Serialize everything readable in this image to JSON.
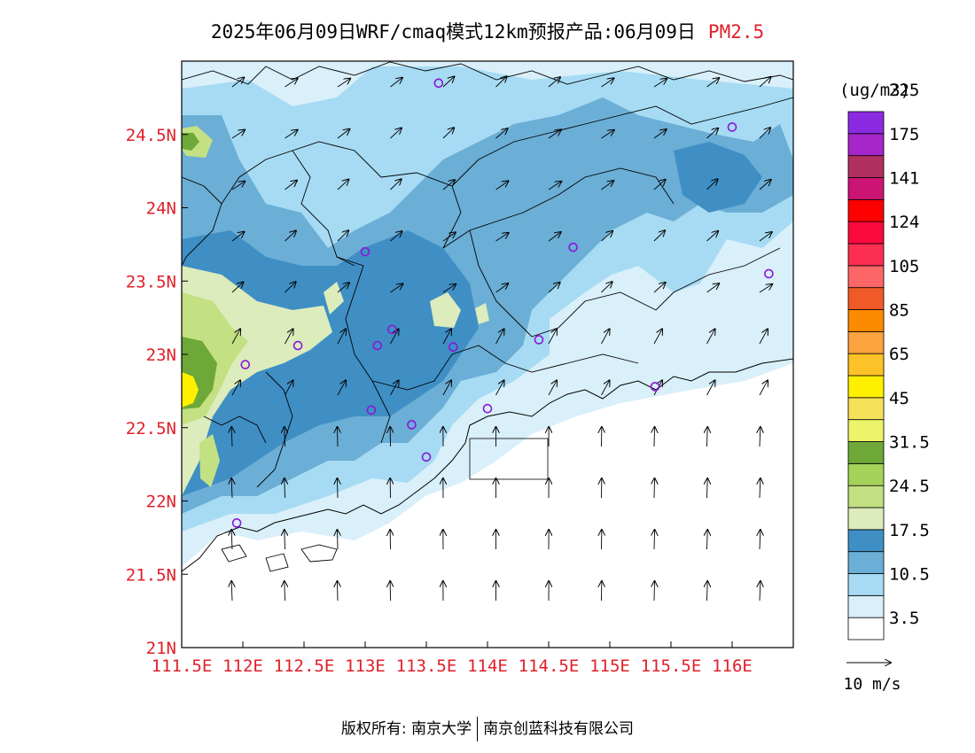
{
  "title": {
    "main": "2025年06月09日WRF/cmaq模式12km预报产品:06月09日",
    "species": "PM2.5"
  },
  "axes": {
    "lon_labels": [
      "111.5E",
      "112E",
      "112.5E",
      "113E",
      "113.5E",
      "114E",
      "114.5E",
      "115E",
      "115.5E",
      "116E"
    ],
    "lon_values": [
      111.5,
      112,
      112.5,
      113,
      113.5,
      114,
      114.5,
      115,
      115.5,
      116
    ],
    "lat_labels": [
      "21N",
      "21.5N",
      "22N",
      "22.5N",
      "23N",
      "23.5N",
      "24N",
      "24.5N"
    ],
    "lat_values": [
      21,
      21.5,
      22,
      22.5,
      23,
      23.5,
      24,
      24.5
    ],
    "lon_range": [
      111.5,
      116.5
    ],
    "lat_range": [
      21,
      25
    ]
  },
  "legend": {
    "unit": "(ug/m3)",
    "labels": [
      "3.5",
      "10.5",
      "17.5",
      "24.5",
      "31.5",
      "45",
      "65",
      "85",
      "105",
      "124",
      "141",
      "175",
      "225"
    ],
    "colors": [
      "#ffffff",
      "#d9eff9",
      "#a6dbf3",
      "#6baed6",
      "#3f8fc5",
      "#dcecbc",
      "#c3e082",
      "#a5d35a",
      "#6ea838",
      "#ecf46a",
      "#f6e15a",
      "#fff000",
      "#fdc227",
      "#fba33e",
      "#fc8a00",
      "#f05a28",
      "#fd6768",
      "#fc2e52",
      "#fb0a3e",
      "#ff0000",
      "#cc1474",
      "#b03060",
      "#a526c9",
      "#8a2be2"
    ]
  },
  "wind_reference": {
    "label": "10 m/s"
  },
  "stations": [
    {
      "lon": 113.6,
      "lat": 24.85
    },
    {
      "lon": 116.0,
      "lat": 24.55
    },
    {
      "lon": 113.0,
      "lat": 23.7
    },
    {
      "lon": 114.7,
      "lat": 23.73
    },
    {
      "lon": 116.3,
      "lat": 23.55
    },
    {
      "lon": 113.22,
      "lat": 23.17
    },
    {
      "lon": 112.45,
      "lat": 23.06
    },
    {
      "lon": 113.1,
      "lat": 23.06
    },
    {
      "lon": 113.72,
      "lat": 23.05
    },
    {
      "lon": 114.42,
      "lat": 23.1
    },
    {
      "lon": 112.02,
      "lat": 22.93
    },
    {
      "lon": 115.37,
      "lat": 22.78
    },
    {
      "lon": 113.05,
      "lat": 22.62
    },
    {
      "lon": 114.0,
      "lat": 22.63
    },
    {
      "lon": 113.38,
      "lat": 22.52
    },
    {
      "lon": 113.5,
      "lat": 22.3
    },
    {
      "lon": 111.95,
      "lat": 21.85
    }
  ],
  "footer": {
    "left": "版权所有: 南京大学",
    "right": "南京创蓝科技有限公司"
  }
}
